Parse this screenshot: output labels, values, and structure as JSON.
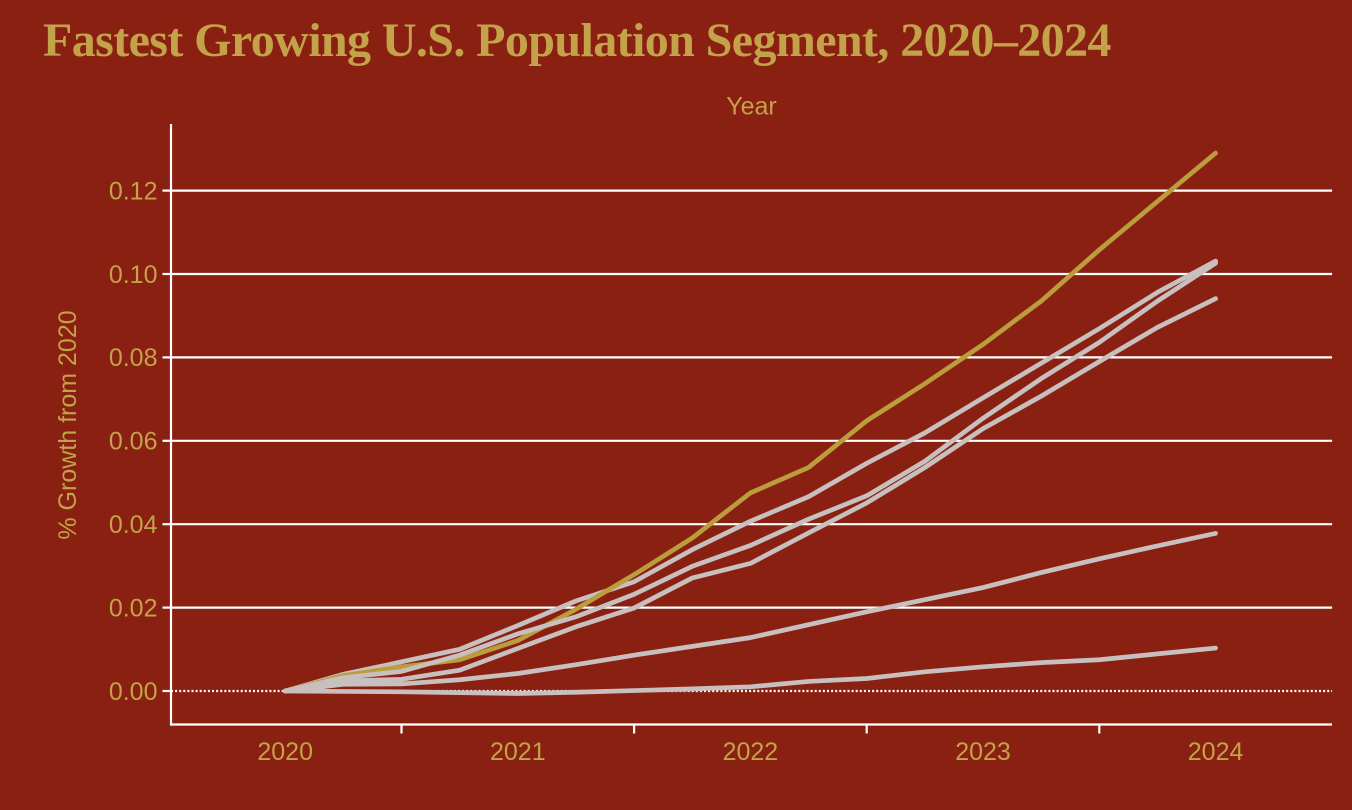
{
  "colors": {
    "background": "#8A2011",
    "title_text": "#C3A24A",
    "axis_text": "#C3A24A",
    "grid_line": "#FFFFFF",
    "axis_line": "#FFFFFF",
    "highlight_line": "#BC9D3E",
    "gray_line": "#C7C0BE"
  },
  "chart_data": {
    "type": "line",
    "title": "Fastest Growing U.S. Population Segment, 2020–2024",
    "xlabel": "Year",
    "ylabel": "% Growth from 2020",
    "x": [
      2020.0,
      2020.25,
      2020.5,
      2020.75,
      2021.0,
      2021.25,
      2021.5,
      2021.75,
      2022.0,
      2022.25,
      2022.5,
      2022.75,
      2023.0,
      2023.25,
      2023.5,
      2023.75,
      2024.0
    ],
    "x_tick_labels": [
      "2020",
      "2021",
      "2022",
      "2023",
      "2024"
    ],
    "x_minor_ticks": [
      2020.5,
      2021.5,
      2022.5,
      2023.5
    ],
    "xlim": [
      2019.51,
      2024.5
    ],
    "y_ticks": [
      0.0,
      0.02,
      0.04,
      0.06,
      0.08,
      0.1,
      0.12
    ],
    "y_tick_labels": [
      "0.00",
      "0.02",
      "0.04",
      "0.06",
      "0.08",
      "0.10",
      "0.12"
    ],
    "ylim": [
      -0.008,
      0.136
    ],
    "grid": "horizontal-only",
    "legend_position": "none",
    "zero_reference_line": {
      "style": "dotted",
      "y": 0
    },
    "series": [
      {
        "name": "gray-line-1",
        "color_role": "gray_line",
        "values": [
          0,
          0.004,
          0.007,
          0.01,
          0.0157,
          0.0216,
          0.0262,
          0.0339,
          0.0407,
          0.0466,
          0.0546,
          0.0619,
          0.0703,
          0.0786,
          0.0869,
          0.0956,
          0.1031
        ]
      },
      {
        "name": "highlight-line",
        "color_role": "highlight_line",
        "values": [
          0,
          0.0037,
          0.0058,
          0.0075,
          0.0121,
          0.0196,
          0.0279,
          0.0367,
          0.0475,
          0.0536,
          0.0648,
          0.0737,
          0.0831,
          0.0935,
          0.1058,
          0.1174,
          0.129
        ]
      },
      {
        "name": "gray-line-2",
        "color_role": "gray_line",
        "values": [
          0,
          0.0032,
          0.0047,
          0.0086,
          0.0137,
          0.0178,
          0.0232,
          0.0299,
          0.0349,
          0.0412,
          0.0468,
          0.0551,
          0.0654,
          0.0749,
          0.0836,
          0.0935,
          0.1026
        ]
      },
      {
        "name": "gray-line-3",
        "color_role": "gray_line",
        "values": [
          0,
          0.0024,
          0.0028,
          0.005,
          0.0102,
          0.0154,
          0.0199,
          0.0271,
          0.0306,
          0.0379,
          0.0451,
          0.0536,
          0.0629,
          0.0707,
          0.079,
          0.0872,
          0.0941
        ]
      },
      {
        "name": "gray-line-4",
        "color_role": "gray_line",
        "values": [
          0,
          0.0016,
          0.0017,
          0.0027,
          0.0042,
          0.0063,
          0.0086,
          0.0107,
          0.0128,
          0.0159,
          0.019,
          0.0219,
          0.0248,
          0.0284,
          0.0317,
          0.0348,
          0.0378
        ]
      },
      {
        "name": "gray-line-5",
        "color_role": "gray_line",
        "values": [
          0,
          -0.0001,
          -0.0002,
          -0.0004,
          -0.0006,
          -0.0003,
          0.0001,
          0.0005,
          0.001,
          0.0023,
          0.003,
          0.0046,
          0.0058,
          0.0068,
          0.0075,
          0.0089,
          0.0103
        ]
      }
    ],
    "x_major_ticks": [
      2020,
      2021,
      2022,
      2023,
      2024
    ]
  }
}
